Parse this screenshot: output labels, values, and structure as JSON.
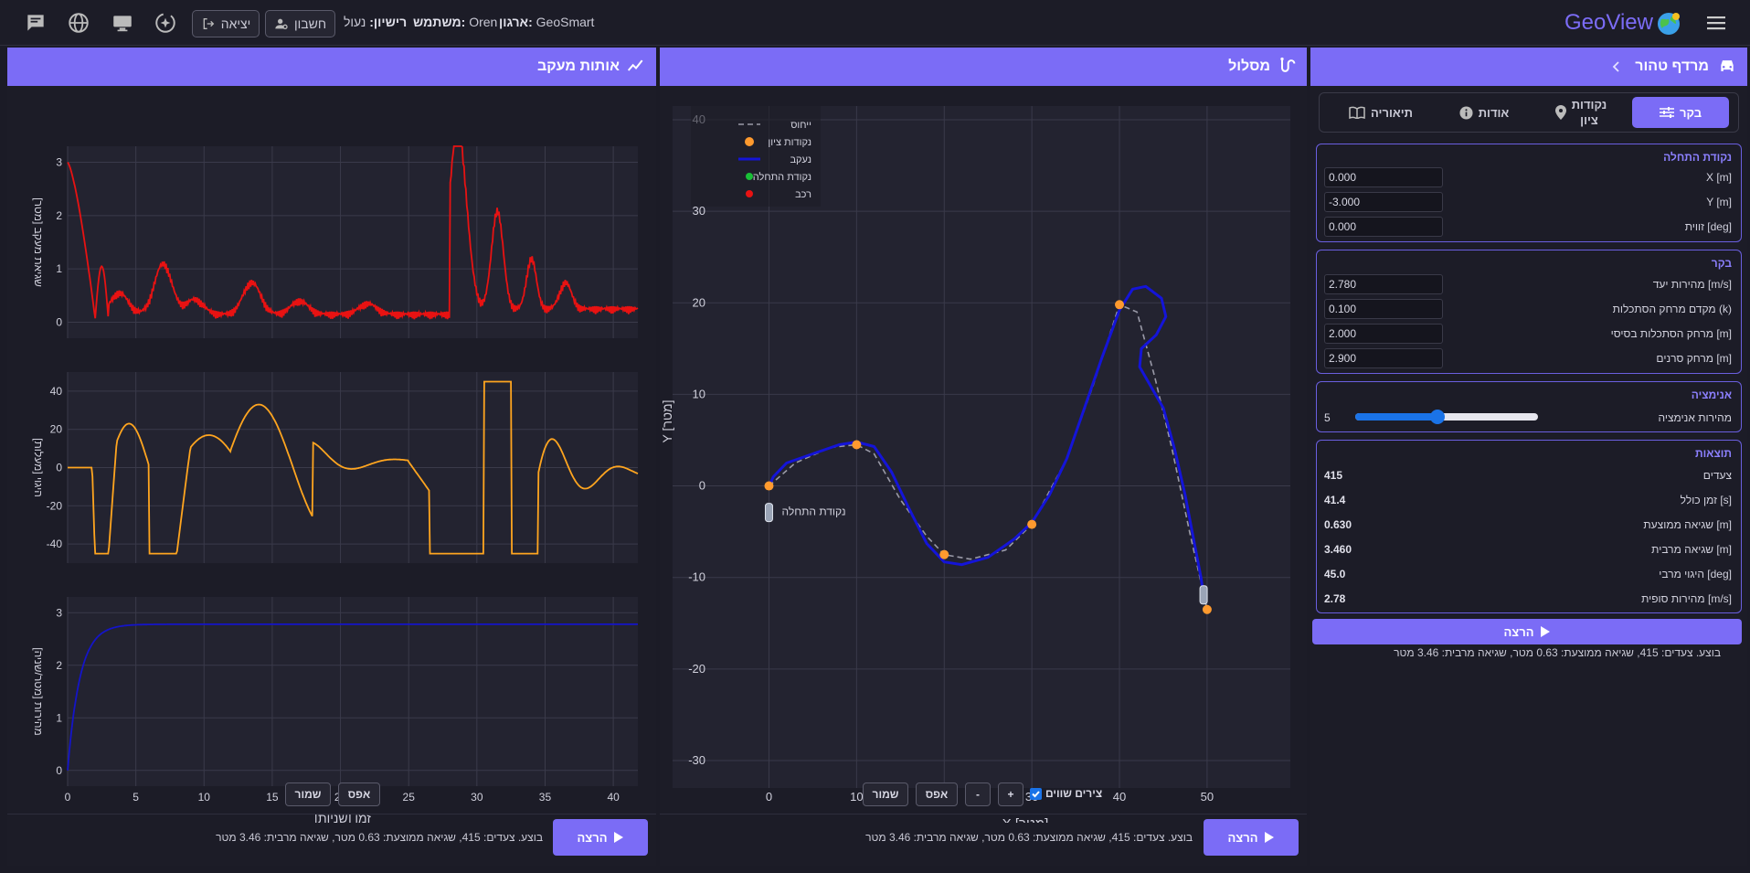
{
  "app": {
    "name": "GeoView"
  },
  "topbar": {
    "org_label": "ארגון:",
    "org_value": "GeoSmart",
    "user_label": "משתמש:",
    "user_value": "Oren",
    "license_label": "רישיון:",
    "license_value": "נעול",
    "account_button": "חשבון",
    "logout_button": "יציאה"
  },
  "left_panel": {
    "title": "מרדף טהור",
    "tabs": [
      {
        "label": "בקר",
        "icon": "sliders-icon",
        "active": true
      },
      {
        "label_line1": "נקודות",
        "label_line2": "ציון",
        "icon": "map-pin-icon"
      },
      {
        "label": "אודות",
        "icon": "info-icon"
      },
      {
        "label": "תיאוריה",
        "icon": "book-icon"
      }
    ],
    "start_point": {
      "title": "נקודת התחלה",
      "fields": [
        {
          "label": "X [m]",
          "value": "0.000"
        },
        {
          "label": "Y [m]",
          "value": "-3.000"
        },
        {
          "label": "זווית [deg]",
          "value": "0.000"
        }
      ]
    },
    "controller": {
      "title": "בקר",
      "fields": [
        {
          "label": "מהירות יעד [m/s]",
          "value": "2.780"
        },
        {
          "label": "מקדם מרחק הסתכלות (k)",
          "value": "0.100"
        },
        {
          "label": "מרחק הסתכלות בסיסי [m]",
          "value": "2.000"
        },
        {
          "label": "מרחק סרנים [m]",
          "value": "2.900"
        }
      ]
    },
    "animation": {
      "title": "אנימציה",
      "label": "מהירות אנימציה",
      "value": "5",
      "fraction": 0.45
    },
    "results": {
      "title": "תוצאות",
      "rows": [
        {
          "label": "צעדים",
          "value": "415"
        },
        {
          "label": "זמן כולל [s]",
          "value": "41.4"
        },
        {
          "label": "שגיאה ממוצעת [m]",
          "value": "0.630"
        },
        {
          "label": "שגיאה מרבית [m]",
          "value": "3.460"
        },
        {
          "label": "היגוי מרבי [deg]",
          "value": "45.0"
        },
        {
          "label": "מהירות סופית [m/s]",
          "value": "2.78"
        }
      ]
    },
    "run_button": "הרצה",
    "status": "בוצע. צעדים: 415, שגיאה ממוצעת: 0.63 מטר, שגיאה מרבית: 3.46 מטר"
  },
  "middle_panel": {
    "title": "מסלול",
    "legend": [
      "ייחוס",
      "נקודות ציון",
      "נעקב",
      "נקודת התחלה",
      "רכב"
    ],
    "start_annotation": "נקודת התחלה",
    "equal_axes_label": "צירים שווים",
    "equal_axes_checked": true,
    "zoom_in": "+",
    "zoom_out": "-",
    "reset_button": "אפס",
    "save_button": "שמור",
    "run_button": "הרצה",
    "status": "בוצע. צעדים: 415, שגיאה ממוצעת: 0.63 מטר, שגיאה מרבית: 3.46 מטר"
  },
  "right_panel": {
    "title": "אותות מעקב",
    "reset_button": "אפס",
    "save_button": "שמור",
    "run_button": "הרצה",
    "status": "בוצע. צעדים: 415, שגיאה ממוצעת: 0.63 מטר, שגיאה מרבית: 3.46 מטר"
  },
  "colors": {
    "accent": "#7b6cf6",
    "reference": "#9a9aa8",
    "tracked": "#1414d8",
    "waypoint": "#ff9a2e",
    "error": "#e81212",
    "steering": "#ffa51f",
    "speed": "#1414c8"
  },
  "chart_data": [
    {
      "type": "line",
      "xlabel": "X [מטר]",
      "ylabel": "Y [מטר]",
      "xlim": [
        -11,
        59.5
      ],
      "ylim": [
        -33,
        41.5
      ],
      "xticks": [
        0,
        10,
        20,
        30,
        40,
        50
      ],
      "yticks": [
        -30,
        -20,
        -10,
        0,
        10,
        20,
        30,
        40
      ],
      "grid": true,
      "legend_position": "top-left",
      "waypoints": [
        [
          0,
          0
        ],
        [
          10,
          4.5
        ],
        [
          20,
          -7.5
        ],
        [
          30,
          -4.2
        ],
        [
          40,
          19.8
        ],
        [
          50,
          -13.5
        ]
      ],
      "reference": [
        [
          0,
          0
        ],
        [
          3,
          2.5
        ],
        [
          7,
          4.2
        ],
        [
          10,
          4.5
        ],
        [
          12,
          3.5
        ],
        [
          15,
          -1.5
        ],
        [
          18,
          -5.5
        ],
        [
          20,
          -7.5
        ],
        [
          23,
          -8
        ],
        [
          27,
          -7
        ],
        [
          30,
          -4.2
        ],
        [
          34,
          3
        ],
        [
          37,
          11
        ],
        [
          40,
          19.8
        ],
        [
          42,
          19
        ],
        [
          44,
          12
        ],
        [
          46,
          4
        ],
        [
          48,
          -5
        ],
        [
          50,
          -13.5
        ]
      ],
      "tracked": [
        [
          0,
          0
        ],
        [
          0.5,
          1
        ],
        [
          2,
          2.5
        ],
        [
          5,
          3.5
        ],
        [
          8,
          4.5
        ],
        [
          10,
          4.8
        ],
        [
          12,
          4.3
        ],
        [
          14,
          1.5
        ],
        [
          16,
          -2.5
        ],
        [
          18,
          -6.3
        ],
        [
          20,
          -8.3
        ],
        [
          22,
          -8.6
        ],
        [
          25,
          -7.8
        ],
        [
          28,
          -5.8
        ],
        [
          30,
          -4
        ],
        [
          32,
          -1
        ],
        [
          34,
          3
        ],
        [
          36,
          8.5
        ],
        [
          38,
          14
        ],
        [
          40,
          19.2
        ],
        [
          41.5,
          21.5
        ],
        [
          43,
          21.8
        ],
        [
          44.8,
          20.5
        ],
        [
          45.3,
          18.5
        ],
        [
          44.2,
          16.5
        ],
        [
          42.5,
          15
        ],
        [
          42.3,
          13
        ],
        [
          43.5,
          11
        ],
        [
          45,
          8.5
        ],
        [
          46.3,
          4
        ],
        [
          47.5,
          -1
        ],
        [
          48.5,
          -6
        ],
        [
          49.3,
          -10
        ],
        [
          49.6,
          -12
        ]
      ],
      "vehicle": [
        [
          0,
          -3
        ],
        [
          49.6,
          -12
        ]
      ]
    },
    {
      "type": "line",
      "ylabel": "שגיאת מעקב [מטר]",
      "xlim": [
        0,
        41.8
      ],
      "ylim": [
        -0.3,
        3.3
      ],
      "yticks": [
        0,
        1,
        2,
        3
      ],
      "xticks": [
        0,
        5,
        10,
        15,
        20,
        25,
        30,
        35,
        40
      ],
      "grid": true
    },
    {
      "type": "line",
      "ylabel": "היגוי [מעלות]",
      "xlim": [
        0,
        41.8
      ],
      "ylim": [
        -50,
        50
      ],
      "yticks": [
        -40,
        -20,
        0,
        20,
        40
      ],
      "xticks": [
        0,
        5,
        10,
        15,
        20,
        25,
        30,
        35,
        40
      ],
      "grid": true
    },
    {
      "type": "line",
      "xlabel": "זמן [שניות]",
      "ylabel": "מהירות [מטר/שניה]",
      "xlim": [
        0,
        41.8
      ],
      "ylim": [
        -0.3,
        3.3
      ],
      "yticks": [
        0,
        1,
        2,
        3
      ],
      "xticks": [
        0,
        5,
        10,
        15,
        20,
        25,
        30,
        35,
        40
      ],
      "grid": true
    }
  ]
}
